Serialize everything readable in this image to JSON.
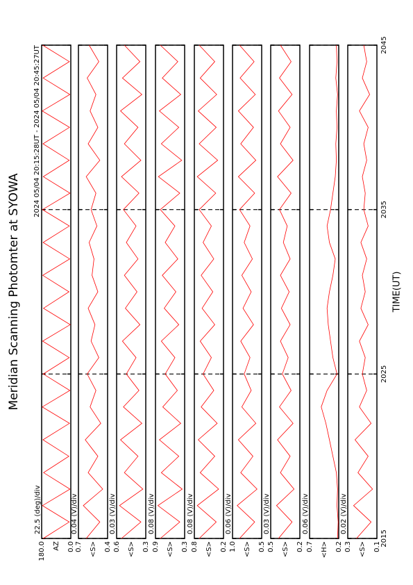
{
  "chart_data": {
    "type": "line",
    "title": "Meridian Scanning Photomter at SYOWA",
    "subtitle": "2024 05/04 20:15:28UT - 2024 05/04 20:45:27UT",
    "xlabel": "TIME(UT)",
    "xlim": [
      2015,
      2045
    ],
    "xticks": [
      2015,
      2025,
      2035,
      2045
    ],
    "x": [
      2015,
      2016,
      2017,
      2018,
      2019,
      2020,
      2021,
      2022,
      2023,
      2024,
      2025,
      2026,
      2027,
      2028,
      2029,
      2030,
      2031,
      2032,
      2033,
      2034,
      2035,
      2036,
      2037,
      2038,
      2039,
      2040,
      2041,
      2042,
      2043,
      2044,
      2045
    ],
    "panels": [
      {
        "ylabel": "AZ",
        "annotation": "22.5 (deg)/div",
        "color": "#ff0000",
        "ylim": [
          0,
          180
        ],
        "yticks": [
          {
            "value": 0,
            "label": "0.0"
          },
          {
            "value": 180,
            "label": "180.0"
          }
        ],
        "values": [
          170,
          10,
          175,
          5,
          168,
          12,
          172,
          8,
          176,
          6,
          170,
          10,
          174,
          4,
          169,
          11,
          173,
          7,
          171,
          9,
          175,
          5,
          170,
          10,
          172,
          8,
          176,
          6,
          171,
          9,
          174
        ]
      },
      {
        "ylabel": "<S>",
        "annotation": "0.04 (V)/div",
        "color": "#ff0000",
        "ylim": [
          0.4,
          0.7
        ],
        "yticks": [
          0.4,
          0.7
        ],
        "values": [
          0.62,
          0.48,
          0.65,
          0.45,
          0.6,
          0.5,
          0.63,
          0.47,
          0.58,
          0.52,
          0.61,
          0.49,
          0.57,
          0.53,
          0.6,
          0.5,
          0.56,
          0.54,
          0.59,
          0.51,
          0.57,
          0.52,
          0.62,
          0.48,
          0.6,
          0.5,
          0.58,
          0.52,
          0.61,
          0.49,
          0.59
        ]
      },
      {
        "ylabel": "<S>",
        "annotation": "0.03 (V)/div",
        "color": "#ff0000",
        "ylim": [
          0.3,
          0.6
        ],
        "yticks": [
          0.3,
          0.6
        ],
        "values": [
          0.55,
          0.35,
          0.57,
          0.33,
          0.52,
          0.38,
          0.56,
          0.34,
          0.53,
          0.37,
          0.5,
          0.4,
          0.54,
          0.36,
          0.51,
          0.39,
          0.52,
          0.38,
          0.5,
          0.4,
          0.53,
          0.37,
          0.55,
          0.35,
          0.52,
          0.38,
          0.56,
          0.34,
          0.54,
          0.36,
          0.52
        ]
      },
      {
        "ylabel": "<S>",
        "annotation": "0.08 (V)/div",
        "color": "#ff0000",
        "ylim": [
          0.3,
          0.9
        ],
        "yticks": [
          0.3,
          0.9
        ],
        "values": [
          0.8,
          0.4,
          0.85,
          0.35,
          0.78,
          0.42,
          0.82,
          0.38,
          0.75,
          0.45,
          0.7,
          0.5,
          0.78,
          0.42,
          0.72,
          0.48,
          0.76,
          0.44,
          0.7,
          0.5,
          0.8,
          0.4,
          0.84,
          0.36,
          0.78,
          0.42,
          0.82,
          0.38,
          0.76,
          0.44,
          0.8
        ]
      },
      {
        "ylabel": "<S>",
        "annotation": "0.08 (V)/div",
        "color": "#ff0000",
        "ylim": [
          0.2,
          0.8
        ],
        "yticks": [
          0.2,
          0.8
        ],
        "values": [
          0.7,
          0.35,
          0.74,
          0.3,
          0.68,
          0.38,
          0.72,
          0.33,
          0.66,
          0.4,
          0.62,
          0.45,
          0.68,
          0.38,
          0.64,
          0.42,
          0.66,
          0.4,
          0.62,
          0.45,
          0.7,
          0.36,
          0.74,
          0.32,
          0.7,
          0.35,
          0.72,
          0.34,
          0.68,
          0.38,
          0.7
        ]
      },
      {
        "ylabel": "<S>",
        "annotation": "0.06 (V)/div",
        "color": "#ff0000",
        "ylim": [
          0.5,
          1.0
        ],
        "yticks": [
          0.5,
          {
            "value": 1.0,
            "label": "1.0"
          }
        ],
        "values": [
          0.88,
          0.62,
          0.92,
          0.58,
          0.86,
          0.65,
          0.9,
          0.6,
          0.84,
          0.68,
          0.8,
          0.7,
          0.86,
          0.64,
          0.82,
          0.68,
          0.84,
          0.66,
          0.8,
          0.7,
          0.88,
          0.62,
          0.9,
          0.6,
          0.86,
          0.64,
          0.9,
          0.61,
          0.87,
          0.63,
          0.88
        ]
      },
      {
        "ylabel": "<S>",
        "annotation": "0.03 (V)/div",
        "color": "#ff0000",
        "ylim": [
          0.2,
          0.5
        ],
        "yticks": [
          0.2,
          0.5
        ],
        "values": [
          0.42,
          0.28,
          0.44,
          0.26,
          0.4,
          0.3,
          0.43,
          0.27,
          0.41,
          0.29,
          0.38,
          0.32,
          0.4,
          0.3,
          0.39,
          0.31,
          0.4,
          0.3,
          0.37,
          0.33,
          0.41,
          0.29,
          0.43,
          0.27,
          0.4,
          0.3,
          0.42,
          0.28,
          0.41,
          0.29,
          0.4
        ]
      },
      {
        "ylabel": "<H>",
        "annotation": "0.06 (V)/div",
        "color": "#ff0000",
        "ylim": [
          0.2,
          0.7
        ],
        "yticks": [
          0.2,
          0.7
        ],
        "values": [
          0.22,
          0.21,
          0.23,
          0.22,
          0.24,
          0.3,
          0.36,
          0.42,
          0.5,
          0.4,
          0.23,
          0.3,
          0.34,
          0.38,
          0.4,
          0.36,
          0.3,
          0.26,
          0.36,
          0.4,
          0.34,
          0.3,
          0.26,
          0.24,
          0.25,
          0.23,
          0.24,
          0.22,
          0.25,
          0.23,
          0.24
        ]
      },
      {
        "ylabel": "<S>",
        "annotation": "0.02 (V)/div",
        "color": "#ff0000",
        "ylim": [
          0.1,
          0.3
        ],
        "yticks": [
          0.1,
          0.3
        ],
        "values": [
          0.24,
          0.14,
          0.26,
          0.13,
          0.23,
          0.16,
          0.25,
          0.14,
          0.22,
          0.17,
          0.2,
          0.18,
          0.22,
          0.16,
          0.21,
          0.18,
          0.2,
          0.17,
          0.21,
          0.16,
          0.19,
          0.18,
          0.2,
          0.17,
          0.19,
          0.16,
          0.22,
          0.15,
          0.2,
          0.17,
          0.19
        ]
      }
    ]
  }
}
